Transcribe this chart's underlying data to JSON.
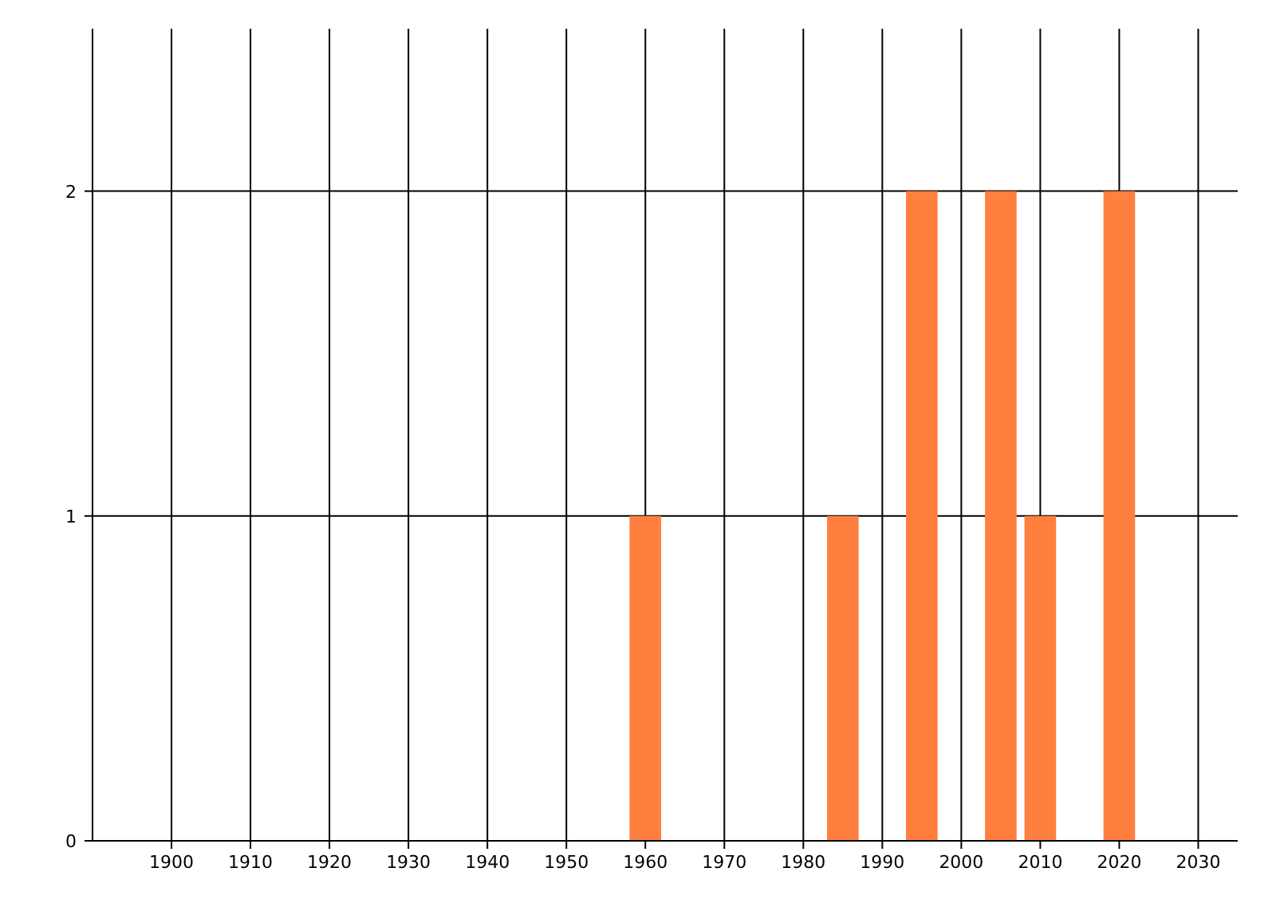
{
  "chart_data": {
    "type": "bar",
    "x": [
      1960,
      1985,
      1995,
      2005,
      2010,
      2020
    ],
    "values": [
      1,
      1,
      2,
      2,
      1,
      2
    ],
    "color": "#ff7f3f",
    "xlim": [
      1890,
      2035
    ],
    "xticks": [
      1900,
      1910,
      1920,
      1930,
      1940,
      1950,
      1960,
      1970,
      1980,
      1990,
      2000,
      2010,
      2020,
      2030
    ],
    "ylim": [
      0,
      2.5
    ],
    "yticks": [
      0,
      1,
      2
    ],
    "grid": true
  }
}
